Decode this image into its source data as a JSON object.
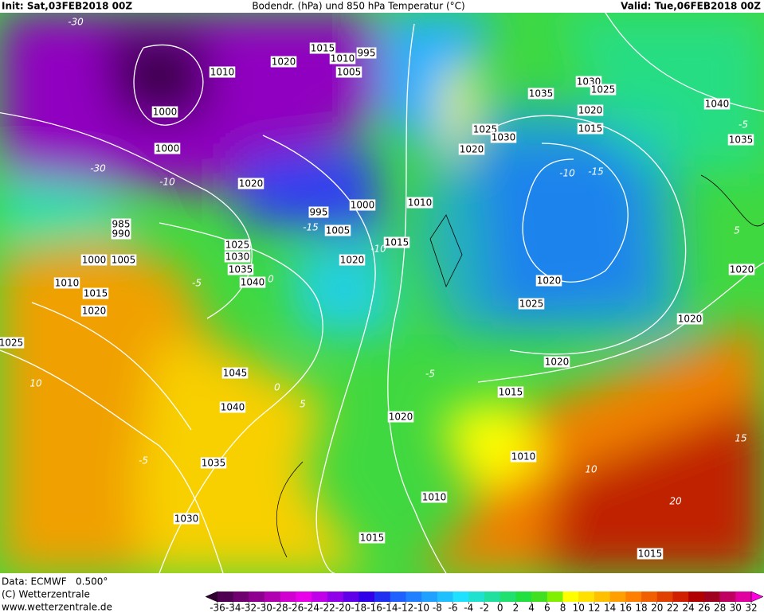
{
  "header": {
    "init": "Init: Sat,03FEB2018 00Z",
    "title": "Bodendr. (hPa) und 850 hPa Temperatur (°C)",
    "valid": "Valid: Tue,06FEB2018 00Z"
  },
  "isobar_labels": [
    1015,
    1010,
    995,
    1020,
    1010,
    1005,
    1000,
    1000,
    1020,
    995,
    1000,
    1005,
    1010,
    1015,
    1020,
    1025,
    1030,
    1035,
    1040,
    985,
    990,
    1000,
    1005,
    1010,
    1015,
    1020,
    1025,
    1045,
    1040,
    1035,
    1030,
    1015,
    1010,
    1020,
    1015,
    1010,
    1020,
    1025,
    1020,
    1020,
    1025,
    1030,
    1035,
    1030,
    1025,
    1020,
    1015,
    1040,
    1035,
    1020,
    1020,
    1015
  ],
  "temperature_labels": [
    "-30",
    "-30",
    "-10",
    "-5",
    "-15",
    "-10",
    "0",
    "-5",
    "0",
    "5",
    "10",
    "-5",
    "10",
    "15",
    "20",
    "-5",
    "-15",
    "-10",
    "5"
  ],
  "footer": {
    "data": "Data: ECMWF   0.500°",
    "copyright": "(C) Wetterzentrale",
    "url": "www.wetterzentrale.de"
  },
  "colorbar": {
    "ticks": [
      -36,
      -34,
      -32,
      -30,
      -28,
      -26,
      -24,
      -22,
      -20,
      -18,
      -16,
      -14,
      -12,
      -10,
      -8,
      -6,
      -4,
      -2,
      0,
      2,
      4,
      6,
      8,
      10,
      12,
      14,
      16,
      18,
      20,
      22,
      24,
      26,
      28,
      30,
      32
    ],
    "colors": [
      "#300030",
      "#500050",
      "#700070",
      "#900090",
      "#b000b0",
      "#d000d0",
      "#e800e8",
      "#c000e8",
      "#9000e8",
      "#6000e8",
      "#3000e8",
      "#2030f0",
      "#2060ff",
      "#2080ff",
      "#20a0ff",
      "#20c0ff",
      "#20e0ff",
      "#20e0d0",
      "#20e0a0",
      "#20e070",
      "#20e040",
      "#40e020",
      "#80f000",
      "#ffff00",
      "#ffe000",
      "#ffc000",
      "#ffa000",
      "#ff8000",
      "#f06000",
      "#e04000",
      "#d02000",
      "#b00000",
      "#a00020",
      "#c00060",
      "#e000a0",
      "#ff00e0"
    ]
  }
}
